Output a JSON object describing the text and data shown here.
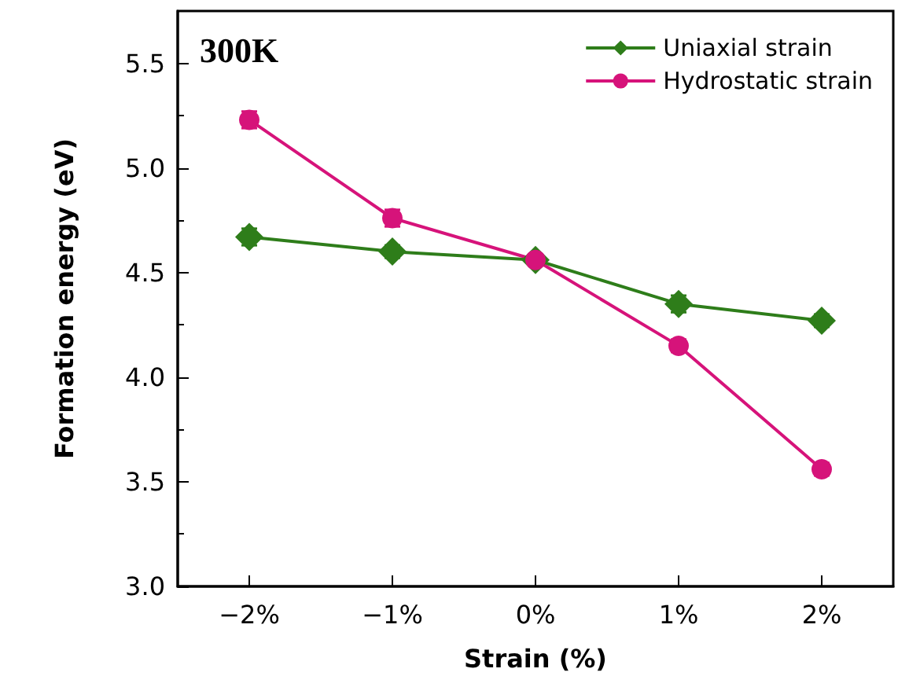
{
  "chart_data": {
    "type": "line",
    "xlabel": "Strain (%)",
    "ylabel": "Formation energy (eV)",
    "annotations": [
      "300K"
    ],
    "categories": [
      "−2%",
      "−1%",
      "0%",
      "1%",
      "2%"
    ],
    "series": [
      {
        "name": "Uniaxial strain",
        "color": "#2e7d1a",
        "marker": "diamond",
        "values": [
          4.67,
          4.6,
          4.56,
          4.35,
          4.27
        ],
        "errors": [
          0.04,
          0.03,
          null,
          0.04,
          0.03
        ]
      },
      {
        "name": "Hydrostatic strain",
        "color": "#d6137a",
        "marker": "circle",
        "values": [
          5.23,
          4.76,
          4.56,
          4.15,
          3.56
        ],
        "errors": [
          0.04,
          0.04,
          null,
          0.03,
          0.03
        ]
      }
    ],
    "ylim": [
      3.0,
      5.75
    ],
    "yticks": [
      {
        "value": 3,
        "label": "3.0"
      },
      3.5,
      {
        "value": 4,
        "label": "4.0"
      },
      4.5,
      {
        "value": 5,
        "label": "5.0"
      },
      5.5
    ],
    "grid": false,
    "legend": "top right",
    "line_style": "solid"
  }
}
